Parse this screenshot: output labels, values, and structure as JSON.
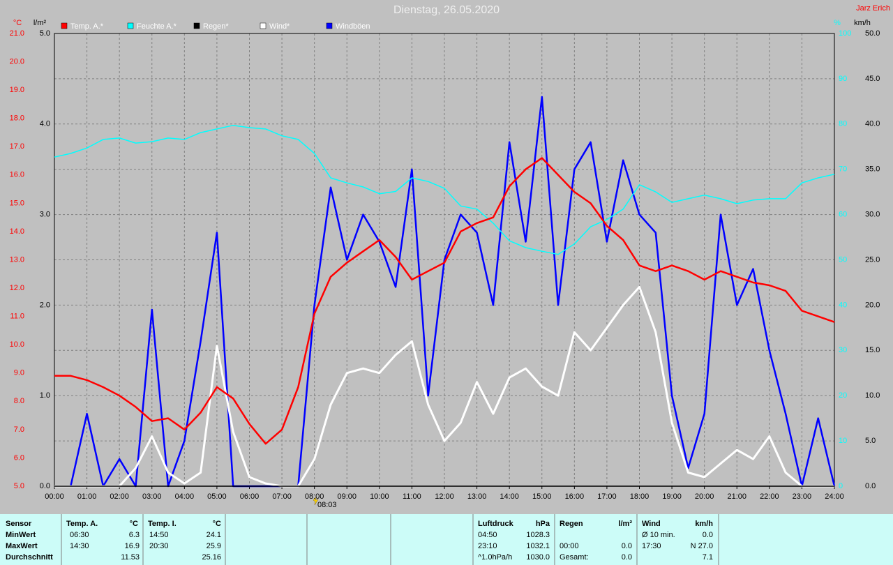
{
  "chart_data": {
    "type": "line",
    "title": "Dienstag, 26.05.2020",
    "author": "Jarz Erich",
    "x": [
      0,
      0.5,
      1,
      1.5,
      2,
      2.5,
      3,
      3.5,
      4,
      4.5,
      5,
      5.5,
      6,
      6.5,
      7,
      7.5,
      8,
      8.5,
      9,
      9.5,
      10,
      10.5,
      11,
      11.5,
      12,
      12.5,
      13,
      13.5,
      14,
      14.5,
      15,
      15.5,
      16,
      16.5,
      17,
      17.5,
      18,
      18.5,
      19,
      19.5,
      20,
      20.5,
      21,
      21.5,
      22,
      22.5,
      23,
      23.5,
      24
    ],
    "xlim": [
      0,
      24
    ],
    "xticks": [
      {
        "value": 0,
        "label": "00:00"
      },
      {
        "value": 1,
        "label": "01:00"
      },
      {
        "value": 2,
        "label": "02:00"
      },
      {
        "value": 3,
        "label": "03:00"
      },
      {
        "value": 4,
        "label": "04:00"
      },
      {
        "value": 5,
        "label": "05:00"
      },
      {
        "value": 6,
        "label": "06:00"
      },
      {
        "value": 7,
        "label": "07:00"
      },
      {
        "value": 8,
        "label": "08:00"
      },
      {
        "value": 9,
        "label": "09:00"
      },
      {
        "value": 10,
        "label": "10:00"
      },
      {
        "value": 11,
        "label": "11:00"
      },
      {
        "value": 12,
        "label": "12:00"
      },
      {
        "value": 13,
        "label": "13:00"
      },
      {
        "value": 14,
        "label": "14:00"
      },
      {
        "value": 15,
        "label": "15:00"
      },
      {
        "value": 16,
        "label": "16:00"
      },
      {
        "value": 17,
        "label": "17:00"
      },
      {
        "value": 18,
        "label": "18:00"
      },
      {
        "value": 19,
        "label": "19:00"
      },
      {
        "value": 20,
        "label": "20:00"
      },
      {
        "value": 21,
        "label": "21:00"
      },
      {
        "value": 22,
        "label": "22:00"
      },
      {
        "value": 23,
        "label": "23:00"
      },
      {
        "value": 24,
        "label": "24:00"
      }
    ],
    "y_label": "°C",
    "ylim": [
      5,
      21
    ],
    "yticks": [
      {
        "value": 5,
        "label": "5.0"
      },
      {
        "value": 6,
        "label": "6.0"
      },
      {
        "value": 7,
        "label": "7.0"
      },
      {
        "value": 8,
        "label": "8.0"
      },
      {
        "value": 9,
        "label": "9.0"
      },
      {
        "value": 10,
        "label": "10.0"
      },
      {
        "value": 11,
        "label": "11.0"
      },
      {
        "value": 12,
        "label": "12.0"
      },
      {
        "value": 13,
        "label": "13.0"
      },
      {
        "value": 14,
        "label": "14.0"
      },
      {
        "value": 15,
        "label": "15.0"
      },
      {
        "value": 16,
        "label": "16.0"
      },
      {
        "value": 17,
        "label": "17.0"
      },
      {
        "value": 18,
        "label": "18.0"
      },
      {
        "value": 19,
        "label": "19.0"
      },
      {
        "value": 20,
        "label": "20.0"
      },
      {
        "value": 21,
        "label": "21.0"
      }
    ],
    "y2_label": "%",
    "y2lim": [
      0,
      100
    ],
    "y2ticks": [
      0,
      10,
      20,
      30,
      40,
      50,
      60,
      70,
      80,
      90,
      100
    ],
    "y3_label": "l/m²",
    "y3lim": [
      0,
      5
    ],
    "y3ticks": [
      {
        "value": 0,
        "label": "0.0"
      },
      {
        "value": 1,
        "label": "1.0"
      },
      {
        "value": 2,
        "label": "2.0"
      },
      {
        "value": 3,
        "label": "3.0"
      },
      {
        "value": 4,
        "label": "4.0"
      },
      {
        "value": 5,
        "label": "5.0"
      }
    ],
    "y4_label": "km/h",
    "y4lim": [
      0,
      50
    ],
    "y4ticks": [
      {
        "value": 0,
        "label": "0.0"
      },
      {
        "value": 5,
        "label": "5.0"
      },
      {
        "value": 10,
        "label": "10.0"
      },
      {
        "value": 15,
        "label": "15.0"
      },
      {
        "value": 20,
        "label": "20.0"
      },
      {
        "value": 25,
        "label": "25.0"
      },
      {
        "value": 30,
        "label": "30.0"
      },
      {
        "value": 35,
        "label": "35.0"
      },
      {
        "value": 40,
        "label": "40.0"
      },
      {
        "value": 45,
        "label": "45.0"
      },
      {
        "value": 50,
        "label": "50.0"
      }
    ],
    "axis_colors": {
      "y": "#ff0000",
      "y2": "#00ffff",
      "y3": "#000000",
      "y4": "#000000"
    },
    "grid": true,
    "series": [
      {
        "name": "Windböen",
        "color": "#0000ff",
        "axis": "y4",
        "width": 2.5,
        "values": [
          0,
          0,
          8,
          0,
          3,
          0,
          19.5,
          0,
          5,
          16,
          28,
          0,
          0,
          0,
          0,
          0,
          20,
          33,
          25,
          30,
          27,
          22,
          35,
          10,
          25,
          30,
          28,
          20,
          38,
          27,
          43,
          20,
          35,
          38,
          27,
          36,
          30,
          28,
          10,
          2,
          8,
          30,
          20,
          24,
          15,
          8,
          0,
          7.5,
          0
        ]
      },
      {
        "name": "Wind*",
        "color": "#ffffff",
        "axis": "y4",
        "width": 3,
        "values": [
          0,
          0,
          0,
          0,
          0,
          2,
          5.5,
          1.5,
          0.3,
          1.5,
          15.5,
          6,
          1,
          0.3,
          0,
          0,
          3,
          9,
          12.5,
          13,
          12.5,
          14.5,
          16,
          9,
          5,
          7,
          11.5,
          8,
          12,
          13,
          11,
          10,
          17,
          15,
          17.5,
          20,
          22,
          17,
          7,
          1.5,
          1,
          2.5,
          4,
          3,
          5.5,
          1.5,
          0,
          0,
          0
        ]
      },
      {
        "name": "Regen*",
        "color": "#000000",
        "axis": "y3",
        "width": 1.5,
        "values": [
          0,
          0,
          0,
          0,
          0,
          0,
          0,
          0,
          0,
          0,
          0,
          0,
          0,
          0,
          0,
          0,
          0,
          0,
          0,
          0,
          0,
          0,
          0,
          0,
          0,
          0,
          0,
          0,
          0,
          0,
          0,
          0,
          0,
          0,
          0,
          0,
          0,
          0,
          0,
          0,
          0,
          0,
          0,
          0,
          0,
          0,
          0,
          0,
          0
        ]
      },
      {
        "name": "Feuchte A.*",
        "color": "#00ffff",
        "axis": "y2",
        "width": 1.5,
        "values": [
          72.7,
          73.5,
          74.7,
          76.6,
          76.9,
          75.8,
          76.1,
          76.9,
          76.6,
          78.1,
          78.9,
          79.7,
          79.2,
          78.9,
          77.4,
          76.6,
          73.5,
          68.1,
          67.0,
          66.1,
          64.6,
          65.1,
          68.1,
          67.3,
          65.8,
          61.9,
          61.2,
          58.1,
          54.2,
          52.7,
          51.9,
          51.2,
          53.5,
          57.3,
          58.9,
          61.2,
          66.6,
          65.0,
          62.7,
          63.5,
          64.3,
          63.5,
          62.4,
          63.2,
          63.5,
          63.5,
          67.0,
          68.1,
          68.9
        ]
      },
      {
        "name": "Temp. A.*",
        "color": "#ff0000",
        "axis": "y",
        "width": 2.5,
        "values": [
          8.9,
          8.9,
          8.75,
          8.5,
          8.2,
          7.8,
          7.3,
          7.4,
          7.0,
          7.6,
          8.5,
          8.1,
          7.2,
          6.5,
          7.0,
          8.5,
          11.1,
          12.4,
          12.9,
          13.3,
          13.7,
          13.1,
          12.3,
          12.6,
          12.9,
          14.0,
          14.3,
          14.5,
          15.6,
          16.2,
          16.6,
          16.0,
          15.4,
          15.0,
          14.2,
          13.7,
          12.8,
          12.6,
          12.8,
          12.6,
          12.3,
          12.6,
          12.4,
          12.2,
          12.1,
          11.9,
          11.2,
          11.0,
          10.8
        ]
      }
    ],
    "legend_order": [
      4,
      3,
      2,
      1,
      0
    ],
    "annotation": {
      "text": "08:03",
      "x": 8.05
    }
  },
  "stats_table": {
    "header": [
      "Sensor",
      "Temp. A.",
      "°C",
      "Temp. I.",
      "°C",
      "Luftdruck",
      "hPa",
      "Regen",
      "l/m²",
      "Wind",
      "km/h"
    ],
    "rows": [
      [
        "MinWert",
        "06:30",
        "6.3",
        "14:50",
        "24.1",
        "04:50",
        "1028.3",
        null,
        null,
        "Ø 10 min.",
        "0.0"
      ],
      [
        "MaxWert",
        "14:30",
        "16.9",
        "20:30",
        "25.9",
        "23:10",
        "1032.1",
        "00:00",
        "0.0",
        "17:30",
        "N 27.0"
      ],
      [
        "Durchschnitt",
        null,
        "11.53",
        null,
        "25.16",
        "^1.0hPa/h",
        "1030.0",
        "Gesamt:",
        "0.0",
        null,
        "7.1"
      ]
    ]
  }
}
